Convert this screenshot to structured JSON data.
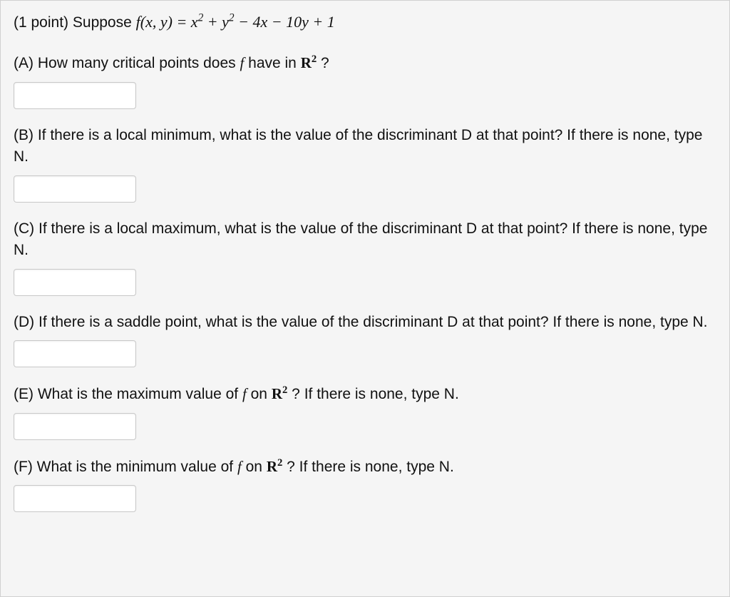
{
  "problem": {
    "points_label": "(1 point)",
    "intro_prefix": "Suppose",
    "equation_parts": {
      "lhs": "f(x, y)",
      "eq": " = ",
      "rhs": "x² + y² − 4x − 10y + 1"
    },
    "parts": [
      {
        "label": "(A)",
        "text_before": "How many critical points does ",
        "math_mid": "f",
        "text_mid": " have in ",
        "math_end": "R²",
        "text_after": " ?",
        "second_line": ""
      },
      {
        "label": "(B)",
        "text_before": "If there is a local minimum, what is the value of the discriminant D at that point? If there is none, type N.",
        "math_mid": "",
        "text_mid": "",
        "math_end": "",
        "text_after": "",
        "second_line": ""
      },
      {
        "label": "(C)",
        "text_before": "If there is a local maximum, what is the value of the discriminant D at that point? If there is none, type N.",
        "math_mid": "",
        "text_mid": "",
        "math_end": "",
        "text_after": "",
        "second_line": ""
      },
      {
        "label": "(D)",
        "text_before": "If there is a saddle point, what is the value of the discriminant D at that point? If there is none, type N.",
        "math_mid": "",
        "text_mid": "",
        "math_end": "",
        "text_after": "",
        "second_line": ""
      },
      {
        "label": "(E)",
        "text_before": "What is the maximum value of ",
        "math_mid": "f",
        "text_mid": " on ",
        "math_end": "R²",
        "text_after": " ? If there is none, type N.",
        "second_line": ""
      },
      {
        "label": "(F)",
        "text_before": "What is the minimum value of ",
        "math_mid": "f",
        "text_mid": " on ",
        "math_end": "R²",
        "text_after": " ? If there is none, type N.",
        "second_line": ""
      }
    ]
  },
  "colors": {
    "panel_bg": "#f5f5f5",
    "panel_border": "#d0d0d0",
    "input_bg": "#ffffff",
    "input_border": "#c8c8c8",
    "text": "#111111"
  }
}
